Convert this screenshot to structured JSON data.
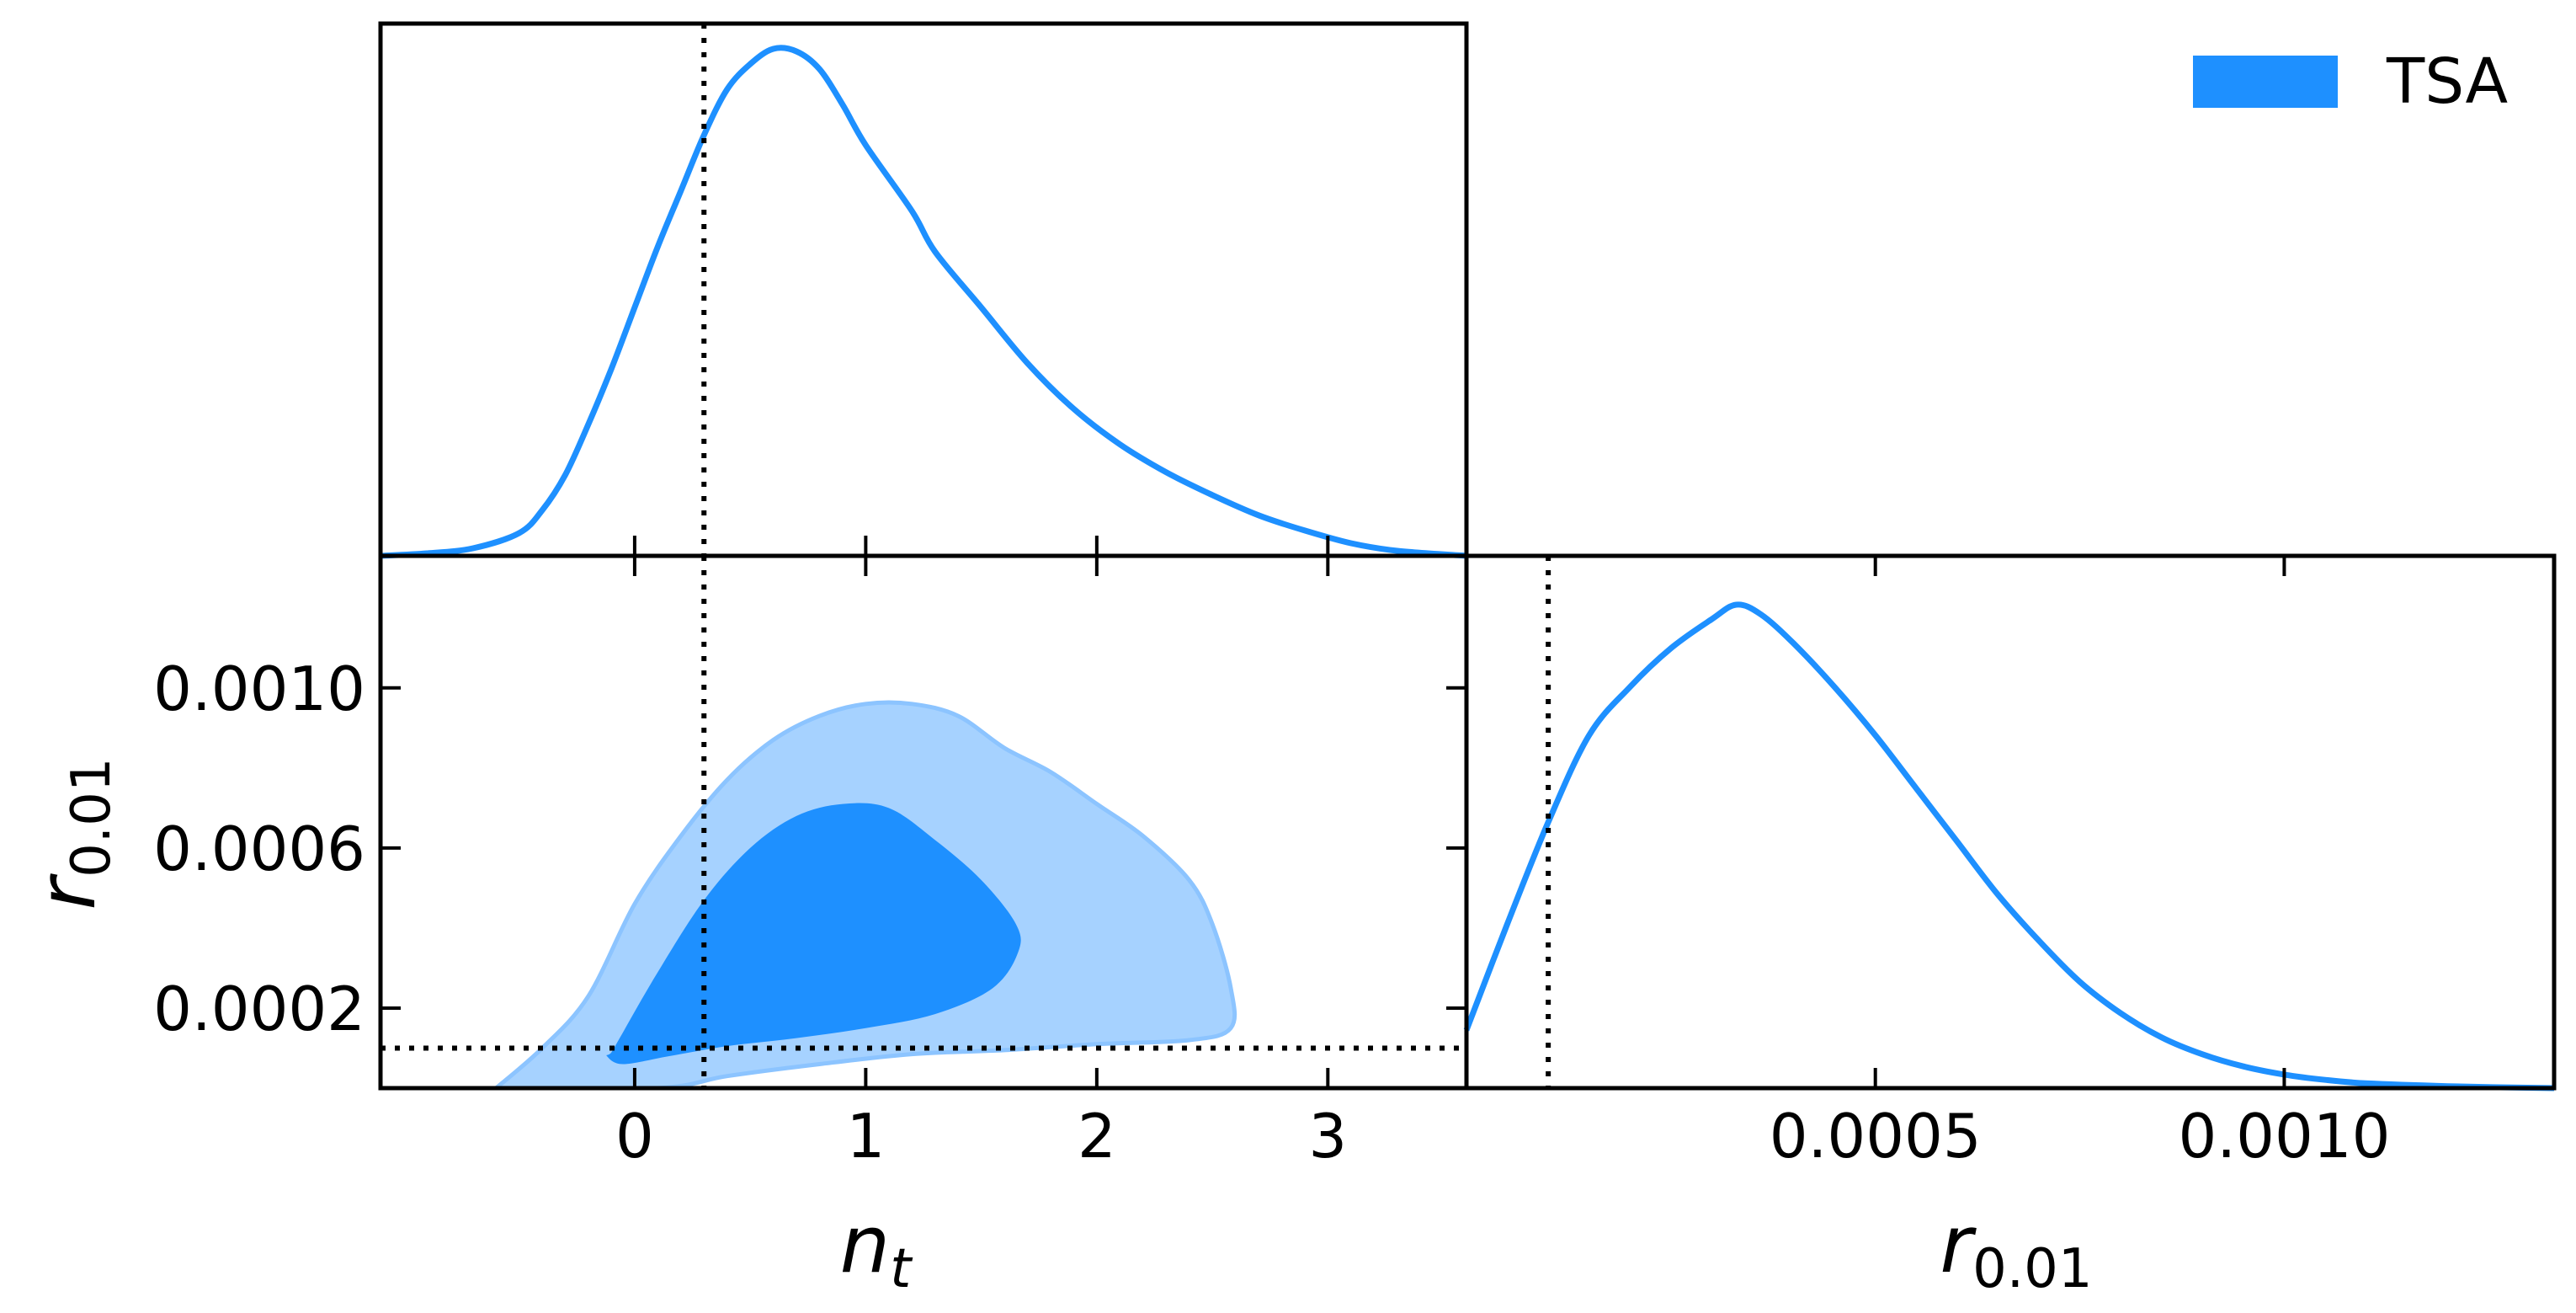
{
  "chart_data": {
    "type": "triangle-plot",
    "colors": {
      "main": "#1E90FF",
      "outer_fill": "#A6D2FF",
      "outer_edge": "#8CC4FF",
      "marker": "#000000"
    },
    "legend": {
      "entries": [
        {
          "label": "TSA",
          "color": "#1E90FF"
        }
      ],
      "position": "top-right"
    },
    "parameters": [
      {
        "name": "n_t",
        "label_base": "n",
        "label_sub": "t"
      },
      {
        "name": "r_0.01",
        "label_base": "r",
        "label_sub": "0.01"
      }
    ],
    "marker_values": {
      "n_t": 0.3,
      "r_0.01": 0.0001
    },
    "panels": {
      "nt_marginal": {
        "xlim": [
          -1.1,
          3.6
        ],
        "x": [
          -1.1,
          -0.9,
          -0.7,
          -0.5,
          -0.4,
          -0.3,
          -0.2,
          -0.1,
          0.0,
          0.1,
          0.2,
          0.3,
          0.4,
          0.5,
          0.6,
          0.7,
          0.8,
          0.9,
          1.0,
          1.2,
          1.3,
          1.5,
          1.7,
          1.9,
          2.1,
          2.3,
          2.5,
          2.7,
          2.9,
          3.1,
          3.3,
          3.6
        ],
        "density": [
          0.0,
          0.005,
          0.015,
          0.045,
          0.09,
          0.16,
          0.26,
          0.37,
          0.49,
          0.61,
          0.72,
          0.83,
          0.92,
          0.97,
          1.0,
          0.995,
          0.96,
          0.89,
          0.81,
          0.68,
          0.6,
          0.49,
          0.38,
          0.29,
          0.22,
          0.165,
          0.12,
          0.08,
          0.05,
          0.025,
          0.01,
          0.0
        ]
      },
      "r_marginal": {
        "xlim": [
          0.0,
          0.00133
        ],
        "xticks": [
          0.0005,
          0.001
        ],
        "xtick_labels": [
          "0.0005",
          "0.0010"
        ],
        "x": [
          0.0,
          5e-05,
          0.0001,
          0.00015,
          0.0002,
          0.00025,
          0.0003,
          0.00033,
          0.00036,
          0.0004,
          0.00045,
          0.0005,
          0.00055,
          0.0006,
          0.00065,
          0.0007,
          0.00075,
          0.0008,
          0.00085,
          0.0009,
          0.00095,
          0.001,
          0.00105,
          0.0011,
          0.0012,
          0.00133
        ],
        "density": [
          0.12,
          0.34,
          0.55,
          0.73,
          0.83,
          0.91,
          0.97,
          1.0,
          0.98,
          0.92,
          0.83,
          0.73,
          0.62,
          0.51,
          0.4,
          0.305,
          0.22,
          0.155,
          0.105,
          0.07,
          0.045,
          0.028,
          0.017,
          0.01,
          0.004,
          0.0
        ]
      },
      "joint": {
        "xlim": [
          -1.1,
          3.6
        ],
        "ylim": [
          0.0,
          0.00133
        ],
        "xticks": [
          0,
          1,
          2,
          3
        ],
        "xtick_labels": [
          "0",
          "1",
          "2",
          "3"
        ],
        "yticks": [
          0.0002,
          0.0006,
          0.001
        ],
        "ytick_labels": [
          "0.0002",
          "0.0006",
          "0.0010"
        ],
        "contours": [
          {
            "level": "95%",
            "points": [
              [
                -0.6,
                0.0
              ],
              [
                -0.4,
                0.0001
              ],
              [
                -0.2,
                0.00023
              ],
              [
                0.0,
                0.00046
              ],
              [
                0.2,
                0.00063
              ],
              [
                0.4,
                0.00077
              ],
              [
                0.6,
                0.00087
              ],
              [
                0.8,
                0.00093
              ],
              [
                1.0,
                0.00096
              ],
              [
                1.2,
                0.00096
              ],
              [
                1.4,
                0.00093
              ],
              [
                1.6,
                0.00085
              ],
              [
                1.8,
                0.00079
              ],
              [
                2.0,
                0.00071
              ],
              [
                2.2,
                0.00063
              ],
              [
                2.4,
                0.00052
              ],
              [
                2.5,
                0.00041
              ],
              [
                2.58,
                0.00025
              ],
              [
                2.58,
                0.00015
              ],
              [
                2.4,
                0.00012
              ],
              [
                2.0,
                0.00011
              ],
              [
                1.6,
                9.5e-05
              ],
              [
                1.2,
                8.5e-05
              ],
              [
                0.8,
                6e-05
              ],
              [
                0.4,
                3e-05
              ],
              [
                0.1,
                0.0
              ],
              [
                -0.6,
                0.0
              ]
            ]
          },
          {
            "level": "68%",
            "points": [
              [
                -0.1,
                9e-05
              ],
              [
                -0.05,
                0.00014
              ],
              [
                0.1,
                0.00029
              ],
              [
                0.3,
                0.00047
              ],
              [
                0.5,
                0.0006
              ],
              [
                0.7,
                0.00068
              ],
              [
                0.9,
                0.00071
              ],
              [
                1.1,
                0.0007
              ],
              [
                1.3,
                0.00062
              ],
              [
                1.5,
                0.00052
              ],
              [
                1.65,
                0.00041
              ],
              [
                1.66,
                0.00034
              ],
              [
                1.55,
                0.00025
              ],
              [
                1.3,
                0.000185
              ],
              [
                1.0,
                0.00015
              ],
              [
                0.7,
                0.000125
              ],
              [
                0.4,
                0.000105
              ],
              [
                0.15,
                8e-05
              ],
              [
                -0.05,
                6e-05
              ],
              [
                -0.12,
                8e-05
              ]
            ]
          }
        ]
      }
    }
  }
}
